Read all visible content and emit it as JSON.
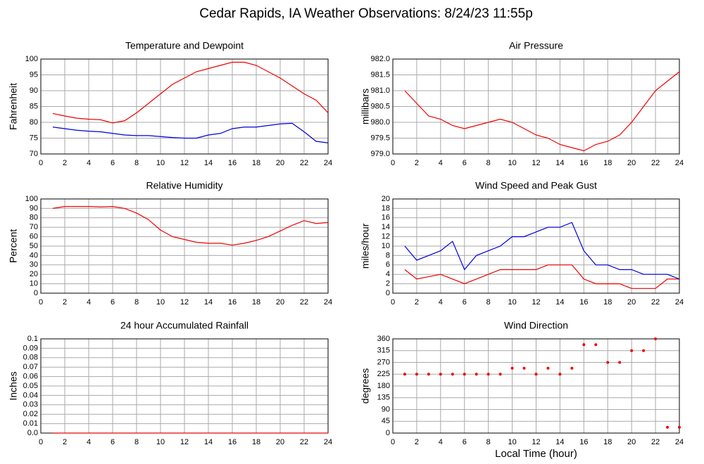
{
  "title": "Cedar Rapids, IA Weather Observations: 8/24/23 11:55p",
  "chart_data": [
    {
      "type": "line",
      "title": "Temperature and Dewpoint",
      "ylabel": "Fahrenheit",
      "x": [
        1,
        2,
        3,
        4,
        5,
        6,
        7,
        8,
        9,
        10,
        11,
        12,
        13,
        14,
        15,
        16,
        17,
        18,
        19,
        20,
        21,
        22,
        23,
        24
      ],
      "series": [
        {
          "color": "#ee0000",
          "values": [
            82.8,
            82,
            81.3,
            81,
            80.8,
            79.8,
            80.5,
            83,
            86,
            89,
            92,
            94,
            96,
            97,
            98,
            99,
            99,
            98,
            96,
            94,
            91.5,
            89,
            87,
            83
          ]
        },
        {
          "color": "#0000dd",
          "values": [
            78.5,
            78,
            77.5,
            77.2,
            77,
            76.5,
            76,
            75.8,
            75.8,
            75.5,
            75.2,
            75,
            75,
            76,
            76.5,
            78,
            78.5,
            78.5,
            79,
            79.5,
            79.7,
            77,
            74,
            73.5
          ]
        }
      ],
      "xlim": [
        0,
        24
      ],
      "xticks": [
        0,
        2,
        4,
        6,
        8,
        10,
        12,
        14,
        16,
        18,
        20,
        22,
        24
      ],
      "ylim": [
        70,
        100
      ],
      "yticks": [
        70,
        75,
        80,
        85,
        90,
        95,
        100
      ],
      "grid": true
    },
    {
      "type": "line",
      "title": "Air Pressure",
      "ylabel": "millibars",
      "x": [
        1,
        2,
        3,
        4,
        5,
        6,
        7,
        8,
        9,
        10,
        11,
        12,
        13,
        14,
        15,
        16,
        17,
        18,
        19,
        20,
        21,
        22,
        23,
        24
      ],
      "series": [
        {
          "color": "#ee0000",
          "values": [
            981.0,
            980.6,
            980.2,
            980.1,
            979.9,
            979.8,
            979.9,
            980.0,
            980.1,
            980.0,
            979.8,
            979.6,
            979.5,
            979.3,
            979.2,
            979.1,
            979.3,
            979.4,
            979.6,
            980.0,
            980.5,
            981.0,
            981.3,
            981.6
          ]
        }
      ],
      "xlim": [
        0,
        24
      ],
      "xticks": [
        0,
        2,
        4,
        6,
        8,
        10,
        12,
        14,
        16,
        18,
        20,
        22,
        24
      ],
      "ylim": [
        979,
        982
      ],
      "yticks": [
        {
          "value": 979,
          "label": "979.0"
        },
        979.5,
        {
          "value": 980,
          "label": "980.0"
        },
        980.5,
        {
          "value": 981,
          "label": "981.0"
        },
        981.5,
        {
          "value": 982,
          "label": "982.0"
        }
      ],
      "grid": true
    },
    {
      "type": "line",
      "title": "Relative Humidity",
      "ylabel": "Percent",
      "x": [
        1,
        2,
        3,
        4,
        5,
        6,
        7,
        8,
        9,
        10,
        11,
        12,
        13,
        14,
        15,
        16,
        17,
        18,
        19,
        20,
        21,
        22,
        23,
        24
      ],
      "series": [
        {
          "color": "#ee0000",
          "values": [
            90,
            92,
            92,
            92,
            91.5,
            92,
            90,
            85,
            78,
            67,
            60,
            57,
            54,
            53,
            53,
            51,
            53,
            56,
            60,
            66,
            72,
            77,
            74,
            75
          ]
        }
      ],
      "xlim": [
        0,
        24
      ],
      "xticks": [
        0,
        2,
        4,
        6,
        8,
        10,
        12,
        14,
        16,
        18,
        20,
        22,
        24
      ],
      "ylim": [
        0,
        100
      ],
      "yticks": [
        0,
        10,
        20,
        30,
        40,
        50,
        60,
        70,
        80,
        90,
        100
      ],
      "grid": true
    },
    {
      "type": "line",
      "title": "Wind Speed and Peak Gust",
      "ylabel": "miles/hour",
      "x": [
        1,
        2,
        3,
        4,
        5,
        6,
        7,
        8,
        9,
        10,
        11,
        12,
        13,
        14,
        15,
        16,
        17,
        18,
        19,
        20,
        21,
        22,
        23,
        24
      ],
      "series": [
        {
          "color": "#ee0000",
          "values": [
            5,
            3,
            3.5,
            4,
            3,
            2,
            3,
            4,
            5,
            5,
            5,
            5,
            6,
            6,
            6,
            3,
            2,
            2,
            2,
            1,
            1,
            1,
            3,
            3
          ]
        },
        {
          "color": "#0000dd",
          "values": [
            10,
            7,
            8,
            9,
            11,
            5,
            8,
            9,
            10,
            12,
            12,
            13,
            14,
            14,
            15,
            9,
            6,
            6,
            5,
            5,
            4,
            4,
            4,
            3
          ]
        }
      ],
      "xlim": [
        0,
        24
      ],
      "xticks": [
        0,
        2,
        4,
        6,
        8,
        10,
        12,
        14,
        16,
        18,
        20,
        22,
        24
      ],
      "ylim": [
        0,
        20
      ],
      "yticks": [
        0,
        2,
        4,
        6,
        8,
        10,
        12,
        14,
        16,
        18,
        20
      ],
      "grid": true
    },
    {
      "type": "line",
      "title": "24 hour Accumulated Rainfall",
      "ylabel": "Inches",
      "x": [
        1,
        2,
        3,
        4,
        5,
        6,
        7,
        8,
        9,
        10,
        11,
        12,
        13,
        14,
        15,
        16,
        17,
        18,
        19,
        20,
        21,
        22,
        23,
        24
      ],
      "series": [
        {
          "color": "#ee0000",
          "values": [
            0,
            0,
            0,
            0,
            0,
            0,
            0,
            0,
            0,
            0,
            0,
            0,
            0,
            0,
            0,
            0,
            0,
            0,
            0,
            0,
            0,
            0,
            0,
            0
          ]
        }
      ],
      "xlim": [
        0,
        24
      ],
      "xticks": [
        0,
        2,
        4,
        6,
        8,
        10,
        12,
        14,
        16,
        18,
        20,
        22,
        24
      ],
      "ylim": [
        0,
        0.1
      ],
      "yticks": [
        {
          "value": 0,
          "label": "0.0"
        },
        0.01,
        0.02,
        0.03,
        0.04,
        0.05,
        0.06,
        0.07,
        0.08,
        0.09,
        0.1
      ],
      "grid": true
    },
    {
      "type": "scatter",
      "title": "Wind Direction",
      "ylabel": "degrees",
      "xlabel": "Local Time (hour)",
      "x": [
        1,
        2,
        3,
        4,
        5,
        6,
        7,
        8,
        9,
        10,
        11,
        12,
        13,
        14,
        15,
        16,
        17,
        18,
        19,
        20,
        21,
        22,
        23,
        24
      ],
      "series": [
        {
          "color": "#ee0000",
          "values": [
            225,
            225,
            225,
            225,
            225,
            225,
            225,
            225,
            225,
            248,
            248,
            225,
            248,
            225,
            248,
            338,
            338,
            270,
            270,
            315,
            315,
            360,
            22,
            22
          ]
        }
      ],
      "xlim": [
        0,
        24
      ],
      "xticks": [
        0,
        2,
        4,
        6,
        8,
        10,
        12,
        14,
        16,
        18,
        20,
        22,
        24
      ],
      "ylim": [
        0,
        360
      ],
      "yticks": [
        0,
        45,
        90,
        135,
        180,
        225,
        270,
        315,
        360
      ],
      "grid": true
    }
  ]
}
